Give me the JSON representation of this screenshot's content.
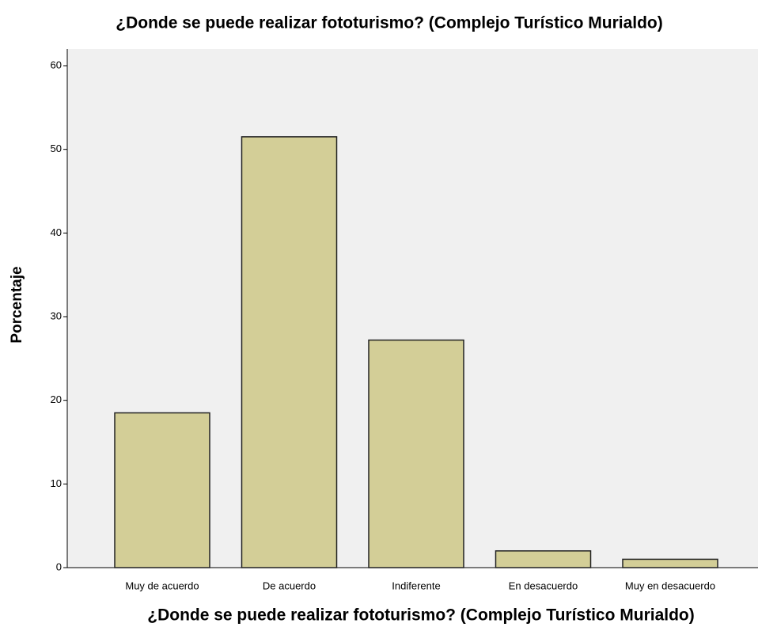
{
  "chart_data": {
    "type": "bar",
    "title": "¿Donde se puede realizar fototurismo? (Complejo Turístico Murialdo)",
    "x_label": "¿Donde se puede realizar fototurismo? (Complejo Turístico Murialdo)",
    "y_label": "Porcentaje",
    "categories": [
      "Muy de acuerdo",
      "De acuerdo",
      "Indiferente",
      "En desacuerdo",
      "Muy en desacuerdo"
    ],
    "values": [
      18.5,
      51.5,
      27.2,
      2.0,
      1.0
    ],
    "color": "#d3ce97",
    "ylim": [
      0,
      60
    ],
    "yticks": [
      0,
      10,
      20,
      30,
      40,
      50,
      60
    ],
    "grid": false
  }
}
